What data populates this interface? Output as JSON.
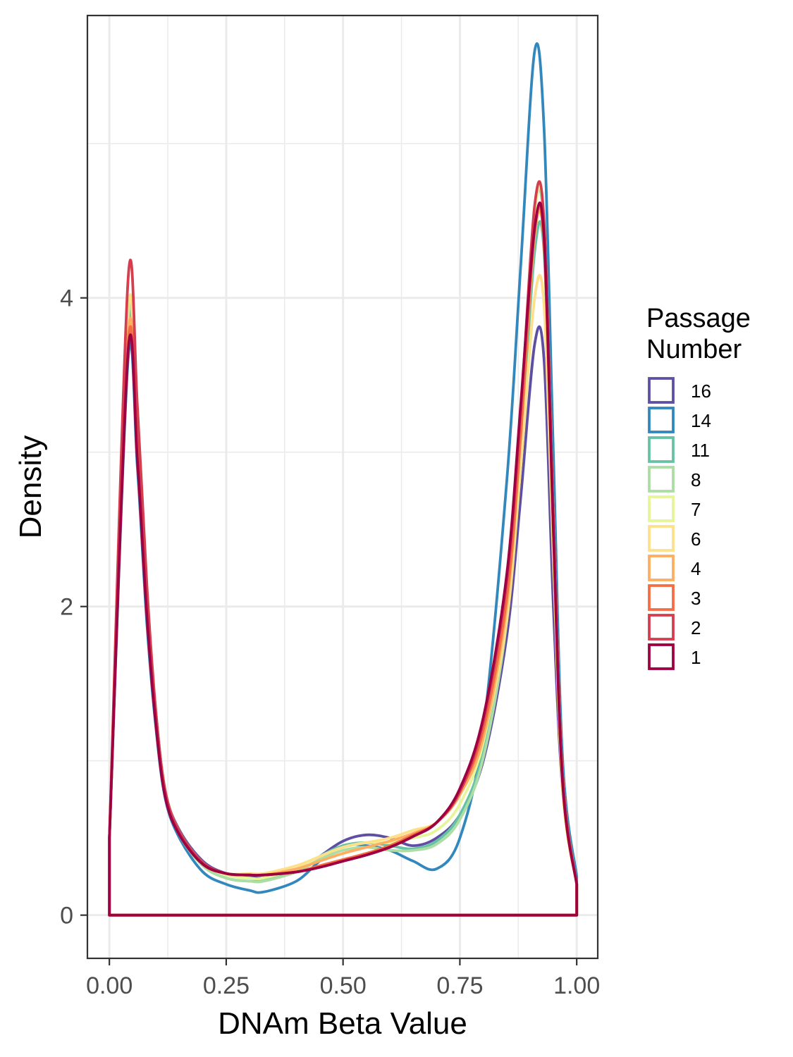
{
  "chart_data": {
    "type": "line",
    "title": "",
    "xlabel": "DNAm Beta Value",
    "ylabel": "Density",
    "xlim": [
      -0.047,
      1.045
    ],
    "ylim": [
      -0.28,
      5.83
    ],
    "x_ticks": [
      "0.00",
      "0.25",
      "0.50",
      "0.75",
      "1.00"
    ],
    "y_ticks": [
      "0",
      "2",
      "4"
    ],
    "grid": true,
    "legend": {
      "title_line1": "Passage",
      "title_line2": "Number",
      "position": "right"
    },
    "x": [
      0.0,
      0.04,
      0.06,
      0.08,
      0.1,
      0.12,
      0.15,
      0.2,
      0.25,
      0.3,
      0.33,
      0.4,
      0.45,
      0.5,
      0.55,
      0.6,
      0.65,
      0.7,
      0.75,
      0.8,
      0.85,
      0.88,
      0.91,
      0.93,
      0.95,
      0.97,
      1.0
    ],
    "series": [
      {
        "name": "16",
        "color": "#5e4fa2",
        "values": [
          0.5,
          3.7,
          3.0,
          2.0,
          1.3,
          0.8,
          0.55,
          0.35,
          0.27,
          0.25,
          0.24,
          0.28,
          0.38,
          0.48,
          0.52,
          0.5,
          0.45,
          0.5,
          0.65,
          1.0,
          1.8,
          2.7,
          3.7,
          3.6,
          2.0,
          0.8,
          0.2
        ]
      },
      {
        "name": "14",
        "color": "#3288bd",
        "values": [
          0.5,
          3.6,
          2.9,
          1.9,
          1.2,
          0.75,
          0.5,
          0.28,
          0.2,
          0.16,
          0.15,
          0.22,
          0.35,
          0.45,
          0.45,
          0.42,
          0.35,
          0.3,
          0.5,
          1.2,
          2.8,
          4.2,
          5.6,
          5.1,
          3.0,
          1.0,
          0.25
        ]
      },
      {
        "name": "11",
        "color": "#66c2a5",
        "values": [
          0.5,
          3.8,
          3.05,
          2.0,
          1.25,
          0.78,
          0.52,
          0.32,
          0.24,
          0.22,
          0.23,
          0.28,
          0.38,
          0.45,
          0.47,
          0.45,
          0.43,
          0.48,
          0.65,
          1.05,
          1.9,
          3.0,
          4.3,
          4.3,
          2.5,
          0.9,
          0.2
        ]
      },
      {
        "name": "8",
        "color": "#abdda4",
        "values": [
          0.5,
          3.85,
          3.1,
          2.05,
          1.25,
          0.78,
          0.52,
          0.32,
          0.24,
          0.22,
          0.22,
          0.28,
          0.36,
          0.42,
          0.44,
          0.42,
          0.42,
          0.46,
          0.62,
          1.02,
          1.9,
          3.1,
          4.55,
          4.45,
          2.6,
          0.9,
          0.2
        ]
      },
      {
        "name": "7",
        "color": "#e6f598",
        "values": [
          0.5,
          3.9,
          3.15,
          2.1,
          1.3,
          0.8,
          0.54,
          0.34,
          0.26,
          0.24,
          0.24,
          0.3,
          0.38,
          0.44,
          0.47,
          0.47,
          0.5,
          0.55,
          0.72,
          1.12,
          2.0,
          3.2,
          4.55,
          4.5,
          2.6,
          0.9,
          0.2
        ]
      },
      {
        "name": "6",
        "color": "#fee08b",
        "values": [
          0.5,
          3.9,
          3.15,
          2.1,
          1.3,
          0.8,
          0.54,
          0.34,
          0.27,
          0.27,
          0.27,
          0.32,
          0.38,
          0.44,
          0.47,
          0.5,
          0.55,
          0.6,
          0.78,
          1.15,
          1.9,
          2.9,
          4.0,
          3.95,
          2.3,
          0.8,
          0.2
        ]
      },
      {
        "name": "4",
        "color": "#fdae61",
        "values": [
          0.5,
          3.75,
          3.05,
          2.0,
          1.25,
          0.78,
          0.53,
          0.33,
          0.27,
          0.26,
          0.26,
          0.3,
          0.35,
          0.4,
          0.44,
          0.48,
          0.53,
          0.6,
          0.78,
          1.15,
          2.0,
          3.1,
          4.4,
          4.35,
          2.5,
          0.85,
          0.2
        ]
      },
      {
        "name": "3",
        "color": "#f46d43",
        "values": [
          0.5,
          3.7,
          3.0,
          2.0,
          1.25,
          0.78,
          0.53,
          0.33,
          0.27,
          0.26,
          0.26,
          0.28,
          0.32,
          0.36,
          0.4,
          0.45,
          0.52,
          0.6,
          0.8,
          1.2,
          2.05,
          3.1,
          4.45,
          4.35,
          2.5,
          0.85,
          0.2
        ]
      },
      {
        "name": "2",
        "color": "#d53e4f",
        "values": [
          0.5,
          4.12,
          3.3,
          2.15,
          1.3,
          0.8,
          0.54,
          0.34,
          0.27,
          0.26,
          0.26,
          0.28,
          0.31,
          0.35,
          0.39,
          0.44,
          0.51,
          0.6,
          0.8,
          1.25,
          2.15,
          3.25,
          4.6,
          4.5,
          2.6,
          0.9,
          0.2
        ]
      },
      {
        "name": "1",
        "color": "#9e0142",
        "values": [
          0.5,
          3.65,
          2.95,
          1.95,
          1.22,
          0.76,
          0.52,
          0.33,
          0.27,
          0.26,
          0.26,
          0.28,
          0.31,
          0.35,
          0.39,
          0.44,
          0.51,
          0.6,
          0.82,
          1.28,
          2.2,
          3.3,
          4.45,
          4.4,
          2.5,
          0.85,
          0.2
        ]
      }
    ]
  }
}
